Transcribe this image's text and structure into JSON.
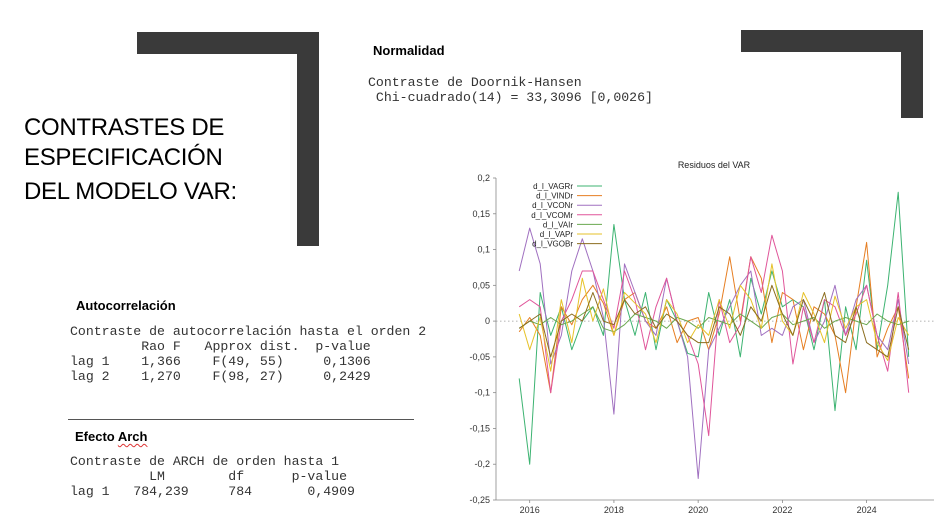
{
  "slide": {
    "title_lines": [
      "CONTRASTES DE",
      "ESPECIFICACIÓN",
      "DEL MODELO VAR:"
    ]
  },
  "normality": {
    "heading": "Normalidad",
    "lines": [
      "Contraste de Doornik-Hansen",
      " Chi-cuadrado(14) = 33,3096 [0,0026]"
    ]
  },
  "autocorrelation": {
    "heading": "Autocorrelación",
    "lines": [
      "Contraste de autocorrelación hasta el orden 2",
      "",
      "         Rao F   Approx dist.  p-value",
      "lag 1    1,366    F(49, 55)     0,1306",
      "lag 2    1,270    F(98, 27)     0,2429"
    ]
  },
  "arch": {
    "heading_plain": "Efecto ",
    "heading_flagged": "Arch",
    "lines": [
      "Contraste de ARCH de orden hasta 1",
      "",
      "          LM        df      p-value",
      "lag 1   784,239     784       0,4909"
    ]
  },
  "chart_data": {
    "type": "line",
    "title": "Residuos del VAR",
    "xlabel": "",
    "ylabel": "",
    "xlim": [
      2015.2,
      2025.6
    ],
    "ylim": [
      -0.25,
      0.2
    ],
    "x_ticks": [
      2016,
      2018,
      2020,
      2022,
      2024
    ],
    "y_ticks": [
      "0,2",
      "0,15",
      "0,1",
      "0,05",
      "0",
      "-0,05",
      "-0,1",
      "-0,15",
      "-0,2",
      "-0,25"
    ],
    "y_tick_values": [
      0.2,
      0.15,
      0.1,
      0.05,
      0,
      -0.05,
      -0.1,
      -0.15,
      -0.2,
      -0.25
    ],
    "zero_line": "dotted",
    "grid": false,
    "legend_position": "top-left",
    "x": [
      2015.75,
      2016.0,
      2016.25,
      2016.5,
      2016.75,
      2017.0,
      2017.25,
      2017.5,
      2017.75,
      2018.0,
      2018.25,
      2018.5,
      2018.75,
      2019.0,
      2019.25,
      2019.5,
      2019.75,
      2020.0,
      2020.25,
      2020.5,
      2020.75,
      2021.0,
      2021.25,
      2021.5,
      2021.75,
      2022.0,
      2022.25,
      2022.5,
      2022.75,
      2023.0,
      2023.25,
      2023.5,
      2023.75,
      2024.0,
      2024.25,
      2024.5,
      2024.75,
      2025.0
    ],
    "series": [
      {
        "name": "d_l_VAGRr",
        "color": "#3cb371",
        "values": [
          -0.08,
          -0.2,
          0.04,
          -0.02,
          0.02,
          -0.04,
          0.0,
          0.02,
          -0.02,
          0.135,
          0.03,
          -0.02,
          0.04,
          -0.04,
          0.03,
          0.0,
          -0.045,
          -0.05,
          0.04,
          -0.02,
          0.03,
          -0.05,
          0.06,
          0.01,
          0.07,
          0.02,
          0.03,
          0.02,
          -0.04,
          0.03,
          -0.125,
          0.02,
          -0.04,
          0.085,
          -0.04,
          0.05,
          0.18,
          -0.05
        ]
      },
      {
        "name": "d_l_VINDr",
        "color": "#e67e22",
        "values": [
          -0.015,
          0.005,
          -0.02,
          -0.1,
          0.02,
          -0.005,
          0.03,
          0.05,
          0.025,
          -0.02,
          0.03,
          0.04,
          0.0,
          -0.01,
          0.02,
          -0.03,
          0.0,
          0.005,
          -0.04,
          0.01,
          0.09,
          0.0,
          0.09,
          0.06,
          -0.03,
          0.04,
          0.03,
          -0.04,
          0.02,
          0.01,
          -0.02,
          -0.1,
          0.02,
          0.11,
          -0.05,
          -0.01,
          0.02,
          -0.08
        ]
      },
      {
        "name": "d_l_VCONr",
        "color": "#a070c0",
        "values": [
          0.07,
          0.13,
          0.08,
          -0.06,
          -0.02,
          0.07,
          0.115,
          0.07,
          0.005,
          -0.13,
          0.08,
          0.04,
          0.0,
          -0.02,
          0.06,
          0.0,
          -0.05,
          -0.22,
          -0.04,
          -0.01,
          0.02,
          0.05,
          0.07,
          -0.02,
          -0.01,
          -0.02,
          0.02,
          0.03,
          -0.03,
          0.0,
          0.05,
          -0.02,
          0.03,
          0.05,
          -0.02,
          -0.04,
          0.03,
          -0.06
        ]
      },
      {
        "name": "d_l_VCOMr",
        "color": "#e0559a",
        "values": [
          0.02,
          0.03,
          0.02,
          -0.1,
          0.0,
          0.03,
          0.07,
          0.07,
          0.03,
          -0.01,
          0.07,
          0.03,
          -0.04,
          0.02,
          0.06,
          0.0,
          -0.02,
          -0.06,
          -0.16,
          0.03,
          -0.03,
          -0.005,
          0.09,
          0.04,
          0.12,
          0.07,
          -0.06,
          0.02,
          -0.03,
          0.03,
          0.02,
          -0.02,
          0.01,
          0.05,
          -0.02,
          -0.07,
          0.04,
          -0.1
        ]
      },
      {
        "name": "d_l_VAIr",
        "color": "#6aa84f",
        "values": [
          -0.01,
          0.0,
          -0.005,
          0.005,
          -0.005,
          0.0,
          0.01,
          0.02,
          -0.01,
          -0.015,
          -0.005,
          0.01,
          0.005,
          0.0,
          -0.01,
          0.005,
          0.0,
          -0.01,
          0.005,
          0.0,
          -0.005,
          0.01,
          0.0,
          -0.01,
          0.005,
          0.01,
          -0.005,
          0.0,
          0.005,
          -0.01,
          0.0,
          0.005,
          0.0,
          -0.005,
          0.01,
          0.0,
          -0.005,
          0.0
        ]
      },
      {
        "name": "d_l_VAPr",
        "color": "#e6c229",
        "values": [
          0.01,
          -0.04,
          0.005,
          -0.07,
          0.03,
          -0.03,
          0.06,
          0.0,
          0.045,
          -0.02,
          0.04,
          0.025,
          0.01,
          -0.03,
          0.03,
          0.01,
          -0.03,
          -0.005,
          -0.02,
          0.03,
          -0.01,
          0.05,
          0.03,
          -0.01,
          0.08,
          0.0,
          -0.02,
          0.04,
          0.01,
          -0.03,
          0.035,
          -0.01,
          0.02,
          0.03,
          -0.03,
          -0.055,
          0.005,
          -0.02
        ]
      },
      {
        "name": "d_l_VGOBr",
        "color": "#8b6d1f",
        "values": [
          -0.01,
          0.0,
          0.01,
          -0.05,
          0.0,
          0.01,
          0.0,
          0.04,
          0.0,
          -0.005,
          0.03,
          0.01,
          0.02,
          -0.01,
          0.01,
          0.0,
          -0.02,
          -0.03,
          -0.03,
          0.02,
          0.01,
          -0.02,
          0.02,
          0.0,
          0.05,
          0.01,
          -0.02,
          0.03,
          0.0,
          0.04,
          -0.02,
          -0.03,
          0.02,
          -0.03,
          -0.04,
          -0.05,
          0.02,
          -0.04
        ]
      }
    ]
  }
}
